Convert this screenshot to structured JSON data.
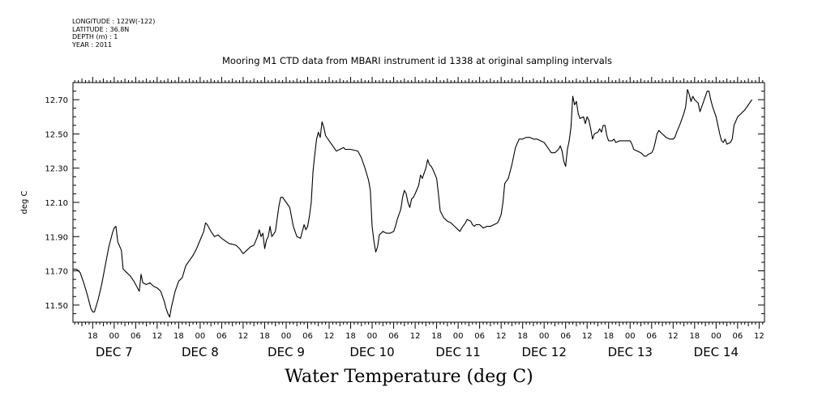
{
  "metadata": {
    "longitude": "LONGITUDE : 122W(-122)",
    "latitude": "LATITUDE : 36.8N",
    "depth": "DEPTH (m) : 1",
    "year": "YEAR : 2011"
  },
  "chart_data": {
    "type": "line",
    "title": "Mooring M1 CTD data from MBARI instrument id 1338 at original sampling intervals",
    "xlabel": "Water Temperature (deg C)",
    "ylabel": "deg C",
    "ylim": [
      11.4,
      12.8
    ],
    "y_ticks": [
      11.5,
      11.7,
      11.9,
      12.1,
      12.3,
      12.5,
      12.7
    ],
    "y_tick_labels": [
      "11.50",
      "11.70",
      "11.90",
      "12.10",
      "12.30",
      "12.50",
      "12.70"
    ],
    "x_unit": "hours from DEC 6 00:00",
    "xlim": [
      12.5,
      205.5
    ],
    "x_hour_ticks": [
      18,
      24,
      30,
      36,
      42,
      48,
      54,
      60,
      66,
      72,
      78,
      84,
      90,
      96,
      102,
      108,
      114,
      120,
      126,
      132,
      138,
      144,
      150,
      156,
      162,
      168,
      174,
      180,
      186,
      192,
      198,
      204
    ],
    "x_hour_labels": [
      "18",
      "00",
      "06",
      "12",
      "18",
      "00",
      "06",
      "12",
      "18",
      "00",
      "06",
      "12",
      "18",
      "00",
      "06",
      "12",
      "18",
      "00",
      "06",
      "12",
      "18",
      "00",
      "06",
      "12",
      "18",
      "00",
      "06",
      "12",
      "18",
      "00",
      "06",
      "12"
    ],
    "day_labels": [
      {
        "hour": 24,
        "text": "DEC  7"
      },
      {
        "hour": 48,
        "text": "DEC  8"
      },
      {
        "hour": 72,
        "text": "DEC  9"
      },
      {
        "hour": 96,
        "text": "DEC 10"
      },
      {
        "hour": 120,
        "text": "DEC 11"
      },
      {
        "hour": 144,
        "text": "DEC 12"
      },
      {
        "hour": 168,
        "text": "DEC 13"
      },
      {
        "hour": 192,
        "text": "DEC 14"
      }
    ],
    "grid": false,
    "series": [
      {
        "color": "#000000",
        "points": [
          [
            12.5,
            11.71
          ],
          [
            13.5,
            11.71
          ],
          [
            14.5,
            11.69
          ],
          [
            15.5,
            11.63
          ],
          [
            16.5,
            11.56
          ],
          [
            17.5,
            11.48
          ],
          [
            18,
            11.46
          ],
          [
            18.5,
            11.46
          ],
          [
            19.5,
            11.53
          ],
          [
            20.5,
            11.62
          ],
          [
            21.5,
            11.73
          ],
          [
            22.5,
            11.84
          ],
          [
            23.5,
            11.92
          ],
          [
            24,
            11.95
          ],
          [
            24.5,
            11.96
          ],
          [
            25,
            11.87
          ],
          [
            26,
            11.82
          ],
          [
            26.5,
            11.71
          ],
          [
            27.5,
            11.69
          ],
          [
            28.5,
            11.67
          ],
          [
            29.5,
            11.64
          ],
          [
            30.5,
            11.6
          ],
          [
            31,
            11.58
          ],
          [
            31.5,
            11.68
          ],
          [
            32,
            11.63
          ],
          [
            33,
            11.62
          ],
          [
            34,
            11.63
          ],
          [
            35,
            11.61
          ],
          [
            36,
            11.6
          ],
          [
            37,
            11.58
          ],
          [
            38,
            11.52
          ],
          [
            38.5,
            11.48
          ],
          [
            39,
            11.45
          ],
          [
            39.5,
            11.43
          ],
          [
            40,
            11.49
          ],
          [
            41,
            11.58
          ],
          [
            42,
            11.64
          ],
          [
            43,
            11.66
          ],
          [
            44,
            11.73
          ],
          [
            45,
            11.76
          ],
          [
            46,
            11.79
          ],
          [
            47,
            11.83
          ],
          [
            48,
            11.88
          ],
          [
            49,
            11.93
          ],
          [
            49.5,
            11.98
          ],
          [
            50,
            11.97
          ],
          [
            51,
            11.93
          ],
          [
            52,
            11.9
          ],
          [
            53,
            11.91
          ],
          [
            54,
            11.89
          ],
          [
            56,
            11.86
          ],
          [
            58,
            11.85
          ],
          [
            59,
            11.83
          ],
          [
            60,
            11.8
          ],
          [
            61,
            11.82
          ],
          [
            62,
            11.84
          ],
          [
            63,
            11.85
          ],
          [
            64,
            11.9
          ],
          [
            64.5,
            11.94
          ],
          [
            65,
            11.9
          ],
          [
            65.5,
            11.92
          ],
          [
            66,
            11.83
          ],
          [
            66.5,
            11.88
          ],
          [
            67,
            11.9
          ],
          [
            67.5,
            11.96
          ],
          [
            68,
            11.9
          ],
          [
            69,
            11.93
          ],
          [
            70,
            12.08
          ],
          [
            70.5,
            12.13
          ],
          [
            71,
            12.13
          ],
          [
            72,
            12.1
          ],
          [
            73,
            12.07
          ],
          [
            74,
            11.96
          ],
          [
            75,
            11.9
          ],
          [
            76,
            11.89
          ],
          [
            76.5,
            11.93
          ],
          [
            77,
            11.97
          ],
          [
            77.5,
            11.94
          ],
          [
            78,
            11.96
          ],
          [
            78.5,
            12.02
          ],
          [
            79,
            12.1
          ],
          [
            79.5,
            12.28
          ],
          [
            80,
            12.38
          ],
          [
            80.5,
            12.47
          ],
          [
            81,
            12.51
          ],
          [
            81.5,
            12.48
          ],
          [
            82,
            12.57
          ],
          [
            82.5,
            12.54
          ],
          [
            83,
            12.49
          ],
          [
            84,
            12.46
          ],
          [
            85,
            12.43
          ],
          [
            86,
            12.4
          ],
          [
            87,
            12.41
          ],
          [
            88,
            12.42
          ],
          [
            88.5,
            12.41
          ],
          [
            90,
            12.41
          ],
          [
            92,
            12.4
          ],
          [
            93,
            12.36
          ],
          [
            94,
            12.3
          ],
          [
            95,
            12.23
          ],
          [
            95.5,
            12.17
          ],
          [
            96,
            11.96
          ],
          [
            96.5,
            11.87
          ],
          [
            97,
            11.81
          ],
          [
            97.5,
            11.84
          ],
          [
            98,
            11.91
          ],
          [
            99,
            11.93
          ],
          [
            100,
            11.92
          ],
          [
            101,
            11.92
          ],
          [
            102,
            11.93
          ],
          [
            102.5,
            11.96
          ],
          [
            103,
            12.0
          ],
          [
            104,
            12.06
          ],
          [
            104.5,
            12.13
          ],
          [
            105,
            12.17
          ],
          [
            105.5,
            12.15
          ],
          [
            106,
            12.1
          ],
          [
            106.5,
            12.07
          ],
          [
            107,
            12.12
          ],
          [
            107.5,
            12.13
          ],
          [
            108,
            12.15
          ],
          [
            109,
            12.2
          ],
          [
            109.5,
            12.26
          ],
          [
            110,
            12.24
          ],
          [
            111,
            12.3
          ],
          [
            111.5,
            12.35
          ],
          [
            112,
            12.32
          ],
          [
            112.5,
            12.31
          ],
          [
            113,
            12.29
          ],
          [
            114,
            12.24
          ],
          [
            114.5,
            12.15
          ],
          [
            115,
            12.05
          ],
          [
            116,
            12.01
          ],
          [
            117,
            11.99
          ],
          [
            118,
            11.98
          ],
          [
            119,
            11.96
          ],
          [
            120,
            11.94
          ],
          [
            120.5,
            11.93
          ],
          [
            121,
            11.95
          ],
          [
            122,
            11.98
          ],
          [
            122.5,
            12.0
          ],
          [
            123.5,
            11.99
          ],
          [
            124,
            11.97
          ],
          [
            124.5,
            11.96
          ],
          [
            125,
            11.97
          ],
          [
            126,
            11.97
          ],
          [
            127,
            11.95
          ],
          [
            128,
            11.96
          ],
          [
            129,
            11.96
          ],
          [
            130,
            11.97
          ],
          [
            131,
            11.98
          ],
          [
            131.5,
            12.0
          ],
          [
            132,
            12.03
          ],
          [
            132.5,
            12.1
          ],
          [
            133,
            12.21
          ],
          [
            134,
            12.24
          ],
          [
            135,
            12.32
          ],
          [
            136,
            12.42
          ],
          [
            137,
            12.47
          ],
          [
            138,
            12.47
          ],
          [
            139,
            12.48
          ],
          [
            140,
            12.48
          ],
          [
            141,
            12.47
          ],
          [
            142,
            12.47
          ],
          [
            143,
            12.46
          ],
          [
            144,
            12.45
          ],
          [
            145,
            12.42
          ],
          [
            146,
            12.39
          ],
          [
            147,
            12.39
          ],
          [
            148,
            12.41
          ],
          [
            148.5,
            12.43
          ],
          [
            149,
            12.4
          ],
          [
            149.5,
            12.34
          ],
          [
            150,
            12.31
          ],
          [
            150.5,
            12.41
          ],
          [
            151,
            12.46
          ],
          [
            151.5,
            12.54
          ],
          [
            152,
            12.72
          ],
          [
            152.5,
            12.67
          ],
          [
            153,
            12.69
          ],
          [
            153.5,
            12.62
          ],
          [
            154,
            12.59
          ],
          [
            155,
            12.6
          ],
          [
            155.5,
            12.56
          ],
          [
            156,
            12.6
          ],
          [
            156.5,
            12.58
          ],
          [
            157,
            12.53
          ],
          [
            157.5,
            12.47
          ],
          [
            158,
            12.5
          ],
          [
            159,
            12.51
          ],
          [
            159.5,
            12.53
          ],
          [
            160,
            12.51
          ],
          [
            160.5,
            12.55
          ],
          [
            161,
            12.55
          ],
          [
            161.5,
            12.49
          ],
          [
            162,
            12.46
          ],
          [
            163,
            12.46
          ],
          [
            163.5,
            12.47
          ],
          [
            164,
            12.45
          ],
          [
            165,
            12.46
          ],
          [
            166,
            12.46
          ],
          [
            167,
            12.46
          ],
          [
            168,
            12.46
          ],
          [
            168.5,
            12.44
          ],
          [
            169,
            12.41
          ],
          [
            170,
            12.4
          ],
          [
            171,
            12.39
          ],
          [
            172,
            12.37
          ],
          [
            172.5,
            12.37
          ],
          [
            173,
            12.38
          ],
          [
            174,
            12.39
          ],
          [
            174.5,
            12.41
          ],
          [
            175,
            12.45
          ],
          [
            175.5,
            12.5
          ],
          [
            176,
            12.52
          ],
          [
            176.5,
            12.51
          ],
          [
            177,
            12.5
          ],
          [
            178,
            12.48
          ],
          [
            179,
            12.47
          ],
          [
            180,
            12.47
          ],
          [
            180.5,
            12.48
          ],
          [
            181,
            12.51
          ],
          [
            182,
            12.56
          ],
          [
            183,
            12.62
          ],
          [
            183.5,
            12.66
          ],
          [
            184,
            12.76
          ],
          [
            184.5,
            12.73
          ],
          [
            185,
            12.69
          ],
          [
            185.5,
            12.72
          ],
          [
            186,
            12.7
          ],
          [
            187,
            12.68
          ],
          [
            187.5,
            12.63
          ],
          [
            188,
            12.66
          ],
          [
            189,
            12.72
          ],
          [
            189.5,
            12.75
          ],
          [
            190,
            12.75
          ],
          [
            190.5,
            12.7
          ],
          [
            191,
            12.66
          ],
          [
            192,
            12.6
          ],
          [
            193,
            12.5
          ],
          [
            193.5,
            12.46
          ],
          [
            194,
            12.45
          ],
          [
            194.5,
            12.47
          ],
          [
            195,
            12.44
          ],
          [
            196,
            12.45
          ],
          [
            196.5,
            12.47
          ],
          [
            197,
            12.55
          ],
          [
            198,
            12.6
          ],
          [
            199,
            12.62
          ],
          [
            200,
            12.64
          ],
          [
            201,
            12.67
          ],
          [
            202,
            12.7
          ]
        ]
      }
    ]
  }
}
